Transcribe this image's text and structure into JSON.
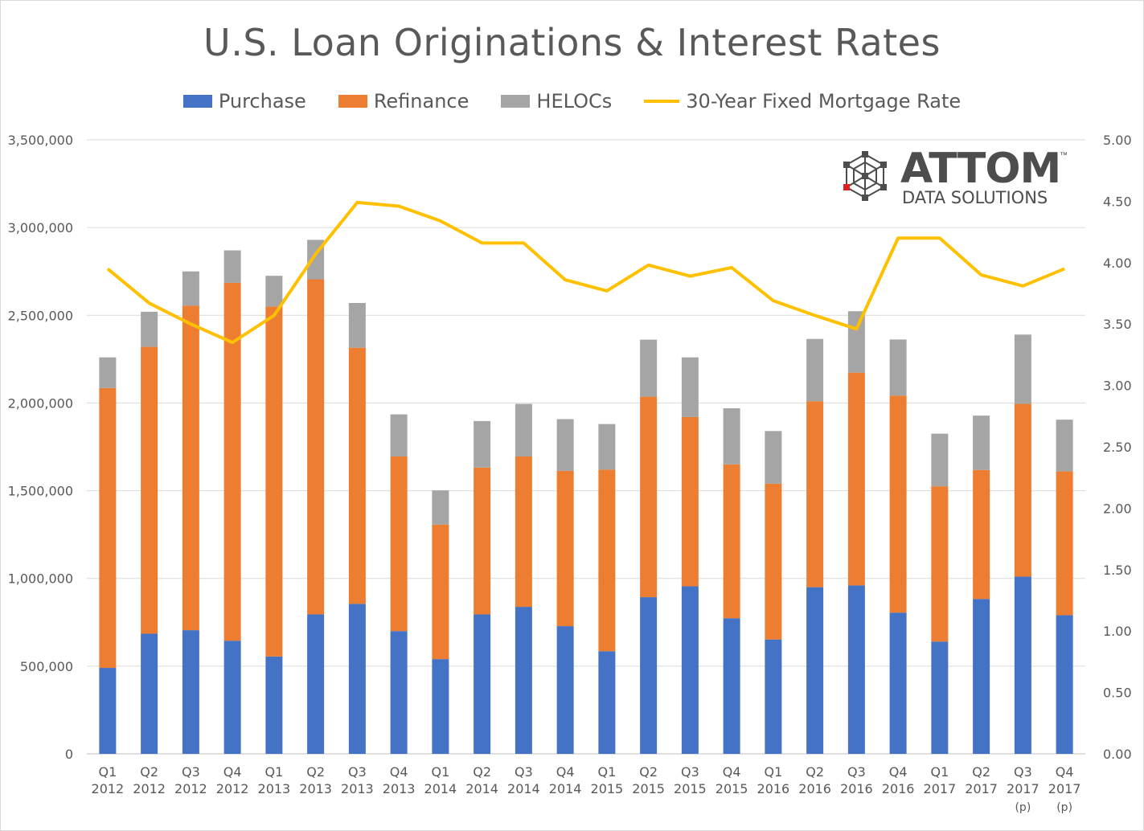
{
  "title": "U.S. Loan Originations & Interest Rates",
  "logo": {
    "word": "ATTOM",
    "tm": "™",
    "sub": "DATA SOLUTIONS"
  },
  "colors": {
    "purchase": "#4472c4",
    "refinance": "#ed7d31",
    "helocs": "#a5a5a5",
    "rate": "#ffc000"
  },
  "chart_data": {
    "type": "bar",
    "stacked": true,
    "categories": [
      "Q1\n2012",
      "Q2\n2012",
      "Q3\n2012",
      "Q4\n2012",
      "Q1\n2013",
      "Q2\n2013",
      "Q3\n2013",
      "Q4\n2013",
      "Q1\n2014",
      "Q2\n2014",
      "Q3\n2014",
      "Q4\n2014",
      "Q1\n2015",
      "Q2\n2015",
      "Q3\n2015",
      "Q4\n2015",
      "Q1\n2016",
      "Q2\n2016",
      "Q3\n2016",
      "Q4\n2016",
      "Q1\n2017",
      "Q2\n2017",
      "Q3\n2017\n(p)",
      "Q4\n2017\n(p)"
    ],
    "series": [
      {
        "name": "Purchase",
        "type": "bar",
        "axis": "left",
        "values": [
          490000,
          685000,
          705000,
          645000,
          555000,
          795000,
          855000,
          700000,
          540000,
          795000,
          838000,
          728000,
          585000,
          893000,
          955000,
          773000,
          652000,
          950000,
          960000,
          805000,
          640000,
          883000,
          1010000,
          790000
        ]
      },
      {
        "name": "Refinance",
        "type": "bar",
        "axis": "left",
        "values": [
          1595000,
          1635000,
          1850000,
          2040000,
          1995000,
          1910000,
          1460000,
          995000,
          767000,
          837000,
          857000,
          885000,
          1035000,
          1143000,
          965000,
          877000,
          888000,
          1060000,
          1213000,
          1237000,
          885000,
          735000,
          985000,
          820000
        ]
      },
      {
        "name": "HELOCs",
        "type": "bar",
        "axis": "left",
        "values": [
          175000,
          200000,
          195000,
          185000,
          175000,
          225000,
          255000,
          240000,
          195000,
          265000,
          300000,
          295000,
          260000,
          325000,
          340000,
          320000,
          300000,
          355000,
          350000,
          320000,
          300000,
          310000,
          395000,
          295000
        ]
      },
      {
        "name": "30-Year Fixed Mortgage Rate",
        "type": "line",
        "axis": "right",
        "values": [
          3.95,
          3.67,
          3.5,
          3.35,
          3.57,
          4.07,
          4.49,
          4.46,
          4.34,
          4.16,
          4.16,
          3.86,
          3.77,
          3.98,
          3.89,
          3.96,
          3.69,
          3.57,
          3.46,
          4.2,
          4.2,
          3.9,
          3.81,
          3.95
        ]
      }
    ],
    "y_left": {
      "min": 0,
      "max": 3500000,
      "ticks": [
        "0",
        "500,000",
        "1,000,000",
        "1,500,000",
        "2,000,000",
        "2,500,000",
        "3,000,000",
        "3,500,000"
      ]
    },
    "y_right": {
      "min": 0,
      "max": 5,
      "ticks": [
        "0.00",
        "0.50",
        "1.00",
        "1.50",
        "2.00",
        "2.50",
        "3.00",
        "3.50",
        "4.00",
        "4.50",
        "5.00"
      ]
    },
    "grid": true,
    "legend": "top"
  }
}
